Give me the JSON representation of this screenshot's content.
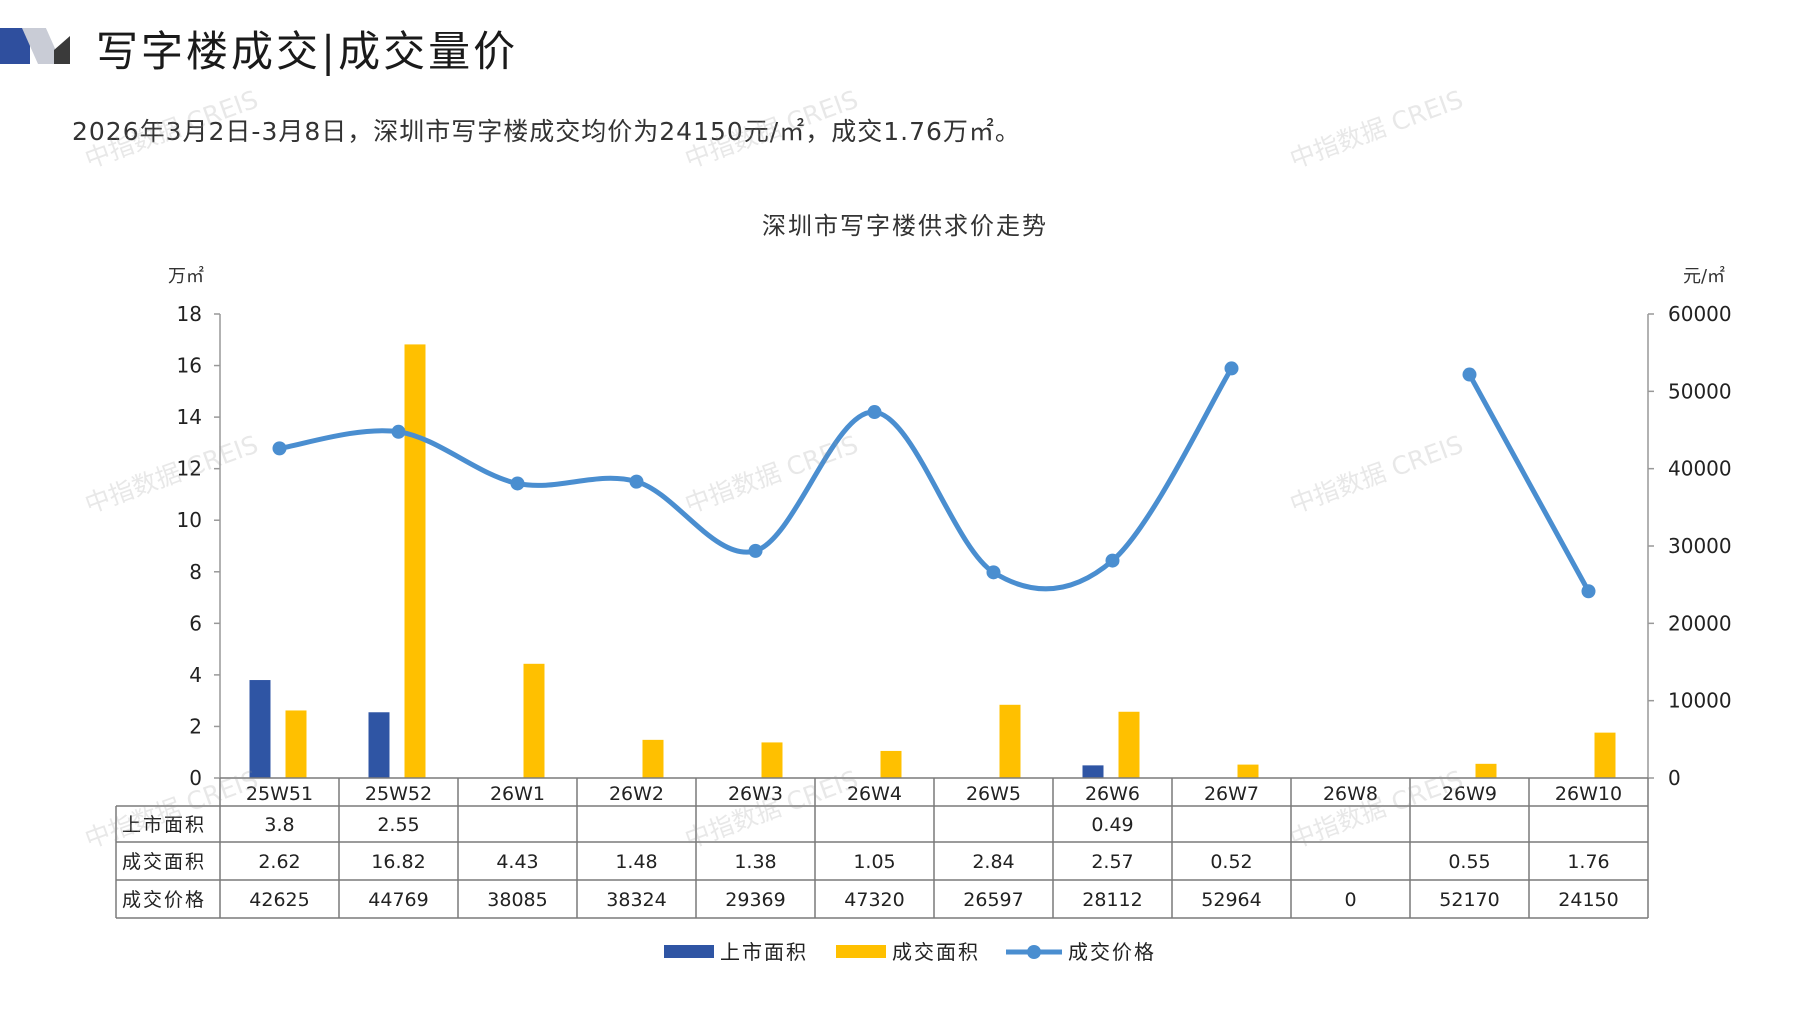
{
  "header": {
    "title": "写字楼成交|成交量价",
    "subtitle": "2026年3月2日-3月8日，深圳市写字楼成交均价为24150元/㎡，成交1.76万㎡。",
    "accent_color": "#2f4f9e"
  },
  "watermark": {
    "text": "中指数据 CREIS"
  },
  "chart_data": {
    "type": "bar",
    "title": "深圳市写字楼供求价走势",
    "categories": [
      "25W51",
      "25W52",
      "26W1",
      "26W2",
      "26W3",
      "26W4",
      "26W5",
      "26W6",
      "26W7",
      "26W8",
      "26W9",
      "26W10"
    ],
    "y_left": {
      "label": "万㎡",
      "range": [
        0,
        18
      ],
      "ticks": [
        "0",
        "2",
        "4",
        "6",
        "8",
        "10",
        "12",
        "14",
        "16",
        "18"
      ]
    },
    "y_right": {
      "label": "元/㎡",
      "range": [
        0,
        60000
      ],
      "ticks": [
        "0",
        "10000",
        "20000",
        "30000",
        "40000",
        "50000",
        "60000"
      ]
    },
    "legend_position": "bottom",
    "series": [
      {
        "name": "上市面积",
        "type": "bar",
        "axis": "left",
        "color": "#2f55a4",
        "values": [
          3.8,
          2.55,
          null,
          null,
          null,
          null,
          null,
          0.49,
          null,
          null,
          null,
          null
        ],
        "labels": [
          "3.8",
          "2.55",
          "",
          "",
          "",
          "",
          "",
          "0.49",
          "",
          "",
          "",
          ""
        ]
      },
      {
        "name": "成交面积",
        "type": "bar",
        "axis": "left",
        "color": "#ffc000",
        "values": [
          2.62,
          16.82,
          4.43,
          1.48,
          1.38,
          1.05,
          2.84,
          2.57,
          0.52,
          null,
          0.55,
          1.76
        ],
        "labels": [
          "2.62",
          "16.82",
          "4.43",
          "1.48",
          "1.38",
          "1.05",
          "2.84",
          "2.57",
          "0.52",
          "",
          "0.55",
          "1.76"
        ]
      },
      {
        "name": "成交价格",
        "type": "line",
        "axis": "right",
        "color": "#4a8ed0",
        "values": [
          42625,
          44769,
          38085,
          38324,
          29369,
          47320,
          26597,
          28112,
          52964,
          0,
          52170,
          24150
        ],
        "labels": [
          "42625",
          "44769",
          "38085",
          "38324",
          "29369",
          "47320",
          "26597",
          "28112",
          "52964",
          "0",
          "52170",
          "24150"
        ]
      }
    ]
  }
}
